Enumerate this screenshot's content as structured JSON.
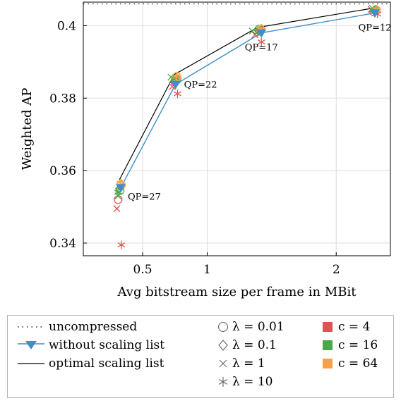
{
  "chart_data": {
    "type": "line",
    "xlabel": "Avg bitstream size per frame in MBit",
    "ylabel": "Weighted AP",
    "xlim": [
      0.04,
      2.42
    ],
    "ylim": [
      0.3365,
      0.4065
    ],
    "xticks": [
      0.5,
      1,
      2
    ],
    "xtick_labels": [
      "0.5",
      "1",
      "2"
    ],
    "yticks": [
      0.34,
      0.36,
      0.38,
      0.4
    ],
    "ytick_labels": [
      "0.34",
      "0.36",
      "0.38",
      "0.4"
    ],
    "grid": true,
    "series": [
      {
        "name": "uncompressed",
        "style": "dotted",
        "color": "#000000",
        "y": 0.406
      },
      {
        "name": "without scaling list",
        "style": "line-triangle",
        "color": "#3d8ec9",
        "x": [
          0.33,
          0.755,
          1.42,
          2.3
        ],
        "y": [
          0.3553,
          0.3838,
          0.398,
          0.4035
        ]
      },
      {
        "name": "optimal scaling list",
        "style": "line",
        "color": "#000000",
        "x": [
          0.32,
          0.745,
          1.39,
          2.28
        ],
        "y": [
          0.3575,
          0.3865,
          0.3995,
          0.4048
        ]
      }
    ],
    "scatter": [
      {
        "x": 0.31,
        "y": 0.352,
        "marker": "circle",
        "color": "#e05252"
      },
      {
        "x": 0.325,
        "y": 0.3545,
        "marker": "circle",
        "color": "#4aa84a"
      },
      {
        "x": 0.335,
        "y": 0.356,
        "marker": "circle",
        "color": "#f7a04b"
      },
      {
        "x": 0.32,
        "y": 0.355,
        "marker": "diamond",
        "color": "#4aa84a"
      },
      {
        "x": 0.33,
        "y": 0.3565,
        "marker": "diamond",
        "color": "#f7a04b"
      },
      {
        "x": 0.3,
        "y": 0.3495,
        "marker": "x",
        "color": "#e05252"
      },
      {
        "x": 0.31,
        "y": 0.353,
        "marker": "x",
        "color": "#4aa84a"
      },
      {
        "x": 0.325,
        "y": 0.3555,
        "marker": "x",
        "color": "#f7a04b"
      },
      {
        "x": 0.335,
        "y": 0.3395,
        "marker": "asterisk",
        "color": "#e05252"
      },
      {
        "x": 0.31,
        "y": 0.354,
        "marker": "asterisk",
        "color": "#4aa84a"
      },
      {
        "x": 0.33,
        "y": 0.3565,
        "marker": "asterisk",
        "color": "#f7a04b"
      },
      {
        "x": 0.75,
        "y": 0.3845,
        "marker": "circle",
        "color": "#e05252"
      },
      {
        "x": 0.765,
        "y": 0.385,
        "marker": "circle",
        "color": "#4aa84a"
      },
      {
        "x": 0.765,
        "y": 0.386,
        "marker": "circle",
        "color": "#f7a04b"
      },
      {
        "x": 0.755,
        "y": 0.385,
        "marker": "diamond",
        "color": "#4aa84a"
      },
      {
        "x": 0.77,
        "y": 0.3855,
        "marker": "diamond",
        "color": "#f7a04b"
      },
      {
        "x": 0.73,
        "y": 0.3832,
        "marker": "x",
        "color": "#e05252"
      },
      {
        "x": 0.72,
        "y": 0.3858,
        "marker": "x",
        "color": "#4aa84a"
      },
      {
        "x": 0.745,
        "y": 0.3855,
        "marker": "x",
        "color": "#f7a04b"
      },
      {
        "x": 0.77,
        "y": 0.3812,
        "marker": "asterisk",
        "color": "#e05252"
      },
      {
        "x": 0.74,
        "y": 0.3852,
        "marker": "asterisk",
        "color": "#4aa84a"
      },
      {
        "x": 0.76,
        "y": 0.386,
        "marker": "asterisk",
        "color": "#f7a04b"
      },
      {
        "x": 1.41,
        "y": 0.3985,
        "marker": "circle",
        "color": "#e05252"
      },
      {
        "x": 1.4,
        "y": 0.399,
        "marker": "circle",
        "color": "#4aa84a"
      },
      {
        "x": 1.415,
        "y": 0.399,
        "marker": "circle",
        "color": "#f7a04b"
      },
      {
        "x": 1.4,
        "y": 0.3985,
        "marker": "diamond",
        "color": "#4aa84a"
      },
      {
        "x": 1.42,
        "y": 0.3992,
        "marker": "diamond",
        "color": "#f7a04b"
      },
      {
        "x": 1.37,
        "y": 0.3975,
        "marker": "x",
        "color": "#e05252"
      },
      {
        "x": 1.35,
        "y": 0.3985,
        "marker": "x",
        "color": "#4aa84a"
      },
      {
        "x": 1.4,
        "y": 0.3988,
        "marker": "x",
        "color": "#f7a04b"
      },
      {
        "x": 1.42,
        "y": 0.3955,
        "marker": "asterisk",
        "color": "#e05252"
      },
      {
        "x": 1.39,
        "y": 0.3982,
        "marker": "asterisk",
        "color": "#4aa84a"
      },
      {
        "x": 1.41,
        "y": 0.399,
        "marker": "asterisk",
        "color": "#f7a04b"
      },
      {
        "x": 2.29,
        "y": 0.4038,
        "marker": "circle",
        "color": "#e05252"
      },
      {
        "x": 2.3,
        "y": 0.4042,
        "marker": "circle",
        "color": "#4aa84a"
      },
      {
        "x": 2.31,
        "y": 0.4043,
        "marker": "circle",
        "color": "#f7a04b"
      },
      {
        "x": 2.3,
        "y": 0.404,
        "marker": "diamond",
        "color": "#4aa84a"
      },
      {
        "x": 2.315,
        "y": 0.4044,
        "marker": "diamond",
        "color": "#f7a04b"
      },
      {
        "x": 2.27,
        "y": 0.4045,
        "marker": "x",
        "color": "#e05252"
      },
      {
        "x": 2.28,
        "y": 0.4048,
        "marker": "x",
        "color": "#4aa84a"
      },
      {
        "x": 2.3,
        "y": 0.4042,
        "marker": "x",
        "color": "#f7a04b"
      },
      {
        "x": 2.32,
        "y": 0.4032,
        "marker": "asterisk",
        "color": "#e05252"
      },
      {
        "x": 2.29,
        "y": 0.4043,
        "marker": "asterisk",
        "color": "#4aa84a"
      },
      {
        "x": 2.31,
        "y": 0.4045,
        "marker": "asterisk",
        "color": "#f7a04b"
      }
    ],
    "annotations": [
      {
        "text": "QP=27",
        "x": 0.33,
        "y": 0.3553,
        "anchor": "right-below"
      },
      {
        "text": "QP=22",
        "x": 0.755,
        "y": 0.3838,
        "anchor": "right"
      },
      {
        "text": "QP=17",
        "x": 1.42,
        "y": 0.398,
        "anchor": "below"
      },
      {
        "text": "QP=12",
        "x": 2.3,
        "y": 0.4035,
        "anchor": "below"
      }
    ]
  },
  "legend": {
    "lines": [
      {
        "label": "uncompressed",
        "symbol": "dotted-line"
      },
      {
        "label": "without scaling list",
        "symbol": "line-triangle"
      },
      {
        "label": "optimal scaling list",
        "symbol": "solid-line"
      }
    ],
    "markers": [
      {
        "label": "λ = 0.01",
        "symbol": "circle"
      },
      {
        "label": "λ = 0.1",
        "symbol": "diamond"
      },
      {
        "label": "λ = 1",
        "symbol": "x"
      },
      {
        "label": "λ = 10",
        "symbol": "asterisk"
      }
    ],
    "colors": [
      {
        "label": "c = 4",
        "color": "#e05252"
      },
      {
        "label": "c = 16",
        "color": "#4aa84a"
      },
      {
        "label": "c = 64",
        "color": "#f7a04b"
      }
    ]
  }
}
